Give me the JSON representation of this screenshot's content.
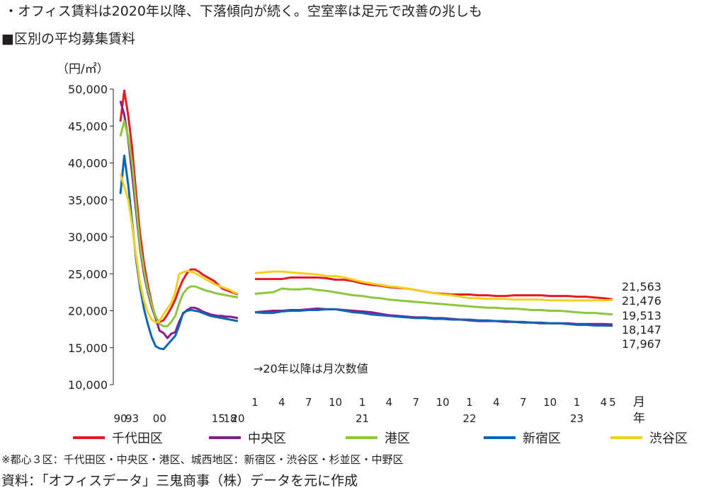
{
  "headline": "・オフィス賃料は2020年以降、下落傾向が続く。空室率は足元で改善の兆しも",
  "chart_data": {
    "type": "line",
    "title": "■区別の平均募集賃料",
    "ylabel": "（円/㎡）",
    "ylim": [
      10000,
      50000
    ],
    "yticks": [
      10000,
      15000,
      20000,
      25000,
      30000,
      35000,
      40000,
      45000,
      50000
    ],
    "ytick_labels": [
      "10,000",
      "15,000",
      "20,000",
      "25,000",
      "30,000",
      "35,000",
      "40,000",
      "45,000",
      "50,000"
    ],
    "annual_note": "→20年以降は月次数値",
    "annual": {
      "x": [
        1990,
        1991,
        1992,
        1993,
        1994,
        1995,
        1996,
        1997,
        1998,
        1999,
        2000,
        2001,
        2002,
        2003,
        2004,
        2005,
        2006,
        2007,
        2008,
        2009,
        2010,
        2011,
        2012,
        2013,
        2014,
        2015,
        2016,
        2017,
        2018,
        2019,
        2020
      ],
      "year_tick_labels": [
        {
          "year": 1990,
          "label": "90"
        },
        {
          "year": 1993,
          "label": "93"
        },
        {
          "year": 2000,
          "label": "00"
        },
        {
          "year": 2015,
          "label": "15"
        },
        {
          "year": 2018,
          "label": "18"
        },
        {
          "year": 2020,
          "label": "20"
        }
      ]
    },
    "monthly": {
      "x": [
        "2020-01",
        "2020-02",
        "2020-03",
        "2020-04",
        "2020-05",
        "2020-06",
        "2020-07",
        "2020-08",
        "2020-09",
        "2020-10",
        "2020-11",
        "2020-12",
        "2021-01",
        "2021-02",
        "2021-03",
        "2021-04",
        "2021-05",
        "2021-06",
        "2021-07",
        "2021-08",
        "2021-09",
        "2021-10",
        "2021-11",
        "2021-12",
        "2022-01",
        "2022-02",
        "2022-03",
        "2022-04",
        "2022-05",
        "2022-06",
        "2022-07",
        "2022-08",
        "2022-09",
        "2022-10",
        "2022-11",
        "2022-12",
        "2023-01",
        "2023-02",
        "2023-03",
        "2023-04",
        "2023-05"
      ],
      "month_tick_labels": [
        {
          "month": "2020-01",
          "label": "1"
        },
        {
          "month": "2020-04",
          "label": "4"
        },
        {
          "month": "2020-07",
          "label": "7"
        },
        {
          "month": "2020-10",
          "label": "10"
        },
        {
          "month": "2021-01",
          "label": "1"
        },
        {
          "month": "2021-04",
          "label": "4"
        },
        {
          "month": "2021-07",
          "label": "7"
        },
        {
          "month": "2021-10",
          "label": "10"
        },
        {
          "month": "2022-01",
          "label": "1"
        },
        {
          "month": "2022-04",
          "label": "4"
        },
        {
          "month": "2022-07",
          "label": "7"
        },
        {
          "month": "2022-10",
          "label": "10"
        },
        {
          "month": "2023-01",
          "label": "1"
        },
        {
          "month": "2023-04",
          "label": "4"
        },
        {
          "month": "2023-05",
          "label": "5"
        }
      ],
      "year_labels": [
        {
          "month": "2021-01",
          "label": "21"
        },
        {
          "month": "2022-01",
          "label": "22"
        },
        {
          "month": "2023-01",
          "label": "23"
        }
      ],
      "month_unit": "月",
      "year_unit": "年"
    },
    "series": [
      {
        "name": "千代田区",
        "color": "#e31c23",
        "annual": [
          45600,
          49800,
          46400,
          42000,
          36000,
          30500,
          26500,
          23500,
          21000,
          19000,
          18500,
          18700,
          19500,
          20400,
          21500,
          23000,
          24200,
          25100,
          25600,
          25600,
          25300,
          24900,
          24600,
          24300,
          24000,
          23500,
          23000,
          22800,
          22600,
          22400,
          22200
        ],
        "monthly": [
          24300,
          24300,
          24300,
          24300,
          24500,
          24500,
          24500,
          24500,
          24400,
          24200,
          24200,
          24000,
          23700,
          23500,
          23400,
          23200,
          23100,
          23000,
          22800,
          22600,
          22400,
          22300,
          22200,
          22200,
          22200,
          22100,
          22100,
          22000,
          22000,
          22100,
          22100,
          22100,
          22100,
          22000,
          22000,
          22000,
          21900,
          21900,
          21800,
          21700,
          21563
        ]
      },
      {
        "name": "中央区",
        "color": "#8b1c8c",
        "annual": [
          48400,
          46500,
          43200,
          38500,
          33500,
          28500,
          25000,
          22500,
          20500,
          19000,
          17300,
          17000,
          16300,
          16900,
          17100,
          18500,
          19600,
          20100,
          20400,
          20400,
          20200,
          19900,
          19700,
          19500,
          19400,
          19300,
          19300,
          19200,
          19200,
          19100,
          19000
        ],
        "monthly": [
          19800,
          19900,
          20000,
          20000,
          20100,
          20100,
          20200,
          20300,
          20200,
          20200,
          20100,
          20000,
          19900,
          19800,
          19600,
          19400,
          19300,
          19200,
          19100,
          19100,
          19000,
          19000,
          18900,
          18800,
          18700,
          18600,
          18600,
          18600,
          18500,
          18500,
          18400,
          18400,
          18300,
          18300,
          18300,
          18300,
          18200,
          18200,
          18200,
          18200,
          18147
        ]
      },
      {
        "name": "港区",
        "color": "#8dc63f",
        "annual": [
          43600,
          45700,
          43500,
          40000,
          34500,
          29000,
          25500,
          22800,
          20800,
          19200,
          18200,
          17900,
          17900,
          18500,
          19300,
          21000,
          22300,
          23000,
          23300,
          23300,
          23100,
          22900,
          22700,
          22600,
          22400,
          22300,
          22200,
          22100,
          22000,
          21900,
          21800
        ],
        "monthly": [
          22300,
          22400,
          22500,
          23000,
          22900,
          22900,
          23000,
          22800,
          22700,
          22500,
          22300,
          22100,
          22000,
          21800,
          21700,
          21500,
          21400,
          21300,
          21200,
          21100,
          21000,
          20900,
          20800,
          20700,
          20600,
          20500,
          20400,
          20400,
          20300,
          20300,
          20200,
          20100,
          20100,
          20000,
          20000,
          19900,
          19800,
          19700,
          19700,
          19600,
          19513
        ]
      },
      {
        "name": "新宿区",
        "color": "#0a66b3",
        "annual": [
          35800,
          41000,
          37000,
          32000,
          27000,
          23200,
          20300,
          18200,
          16400,
          15200,
          14900,
          14800,
          15400,
          16000,
          16600,
          18000,
          19700,
          20000,
          20100,
          20000,
          19900,
          19700,
          19500,
          19300,
          19200,
          19100,
          19000,
          18900,
          18800,
          18700,
          18600
        ],
        "monthly": [
          19800,
          19700,
          19700,
          19900,
          20000,
          20000,
          20100,
          20100,
          20200,
          20200,
          20000,
          19800,
          19700,
          19500,
          19400,
          19300,
          19200,
          19100,
          19000,
          19000,
          18900,
          18900,
          18800,
          18800,
          18800,
          18700,
          18700,
          18600,
          18600,
          18500,
          18500,
          18400,
          18400,
          18300,
          18300,
          18200,
          18100,
          18100,
          18000,
          18000,
          17967
        ]
      },
      {
        "name": "渋谷区",
        "color": "#f4d01e",
        "annual": [
          38500,
          36800,
          35000,
          31500,
          27500,
          23800,
          21400,
          19800,
          18800,
          18400,
          18600,
          19500,
          20300,
          21000,
          22500,
          25000,
          25200,
          25400,
          25300,
          25100,
          24800,
          24500,
          24200,
          23900,
          23600,
          23400,
          23200,
          23000,
          22800,
          22500,
          22300
        ],
        "monthly": [
          25100,
          25200,
          25300,
          25300,
          25200,
          25100,
          25000,
          24900,
          24700,
          24700,
          24500,
          24200,
          23900,
          23700,
          23500,
          23300,
          23200,
          23000,
          22800,
          22600,
          22400,
          22200,
          22100,
          21900,
          21700,
          21700,
          21600,
          21600,
          21600,
          21500,
          21500,
          21500,
          21500,
          21400,
          21400,
          21400,
          21400,
          21400,
          21400,
          21400,
          21476
        ]
      }
    ],
    "end_labels": [
      "21,563",
      "21,476",
      "19,513",
      "18,147",
      "17,967"
    ],
    "legend": {
      "placement": "bottom"
    }
  },
  "footnote": "※都心３区：千代田区・中央区・港区、城西地区：新宿区・渋谷区・杉並区・中野区",
  "source": "資料：「オフィスデータ」三鬼商事（株）データを元に作成"
}
